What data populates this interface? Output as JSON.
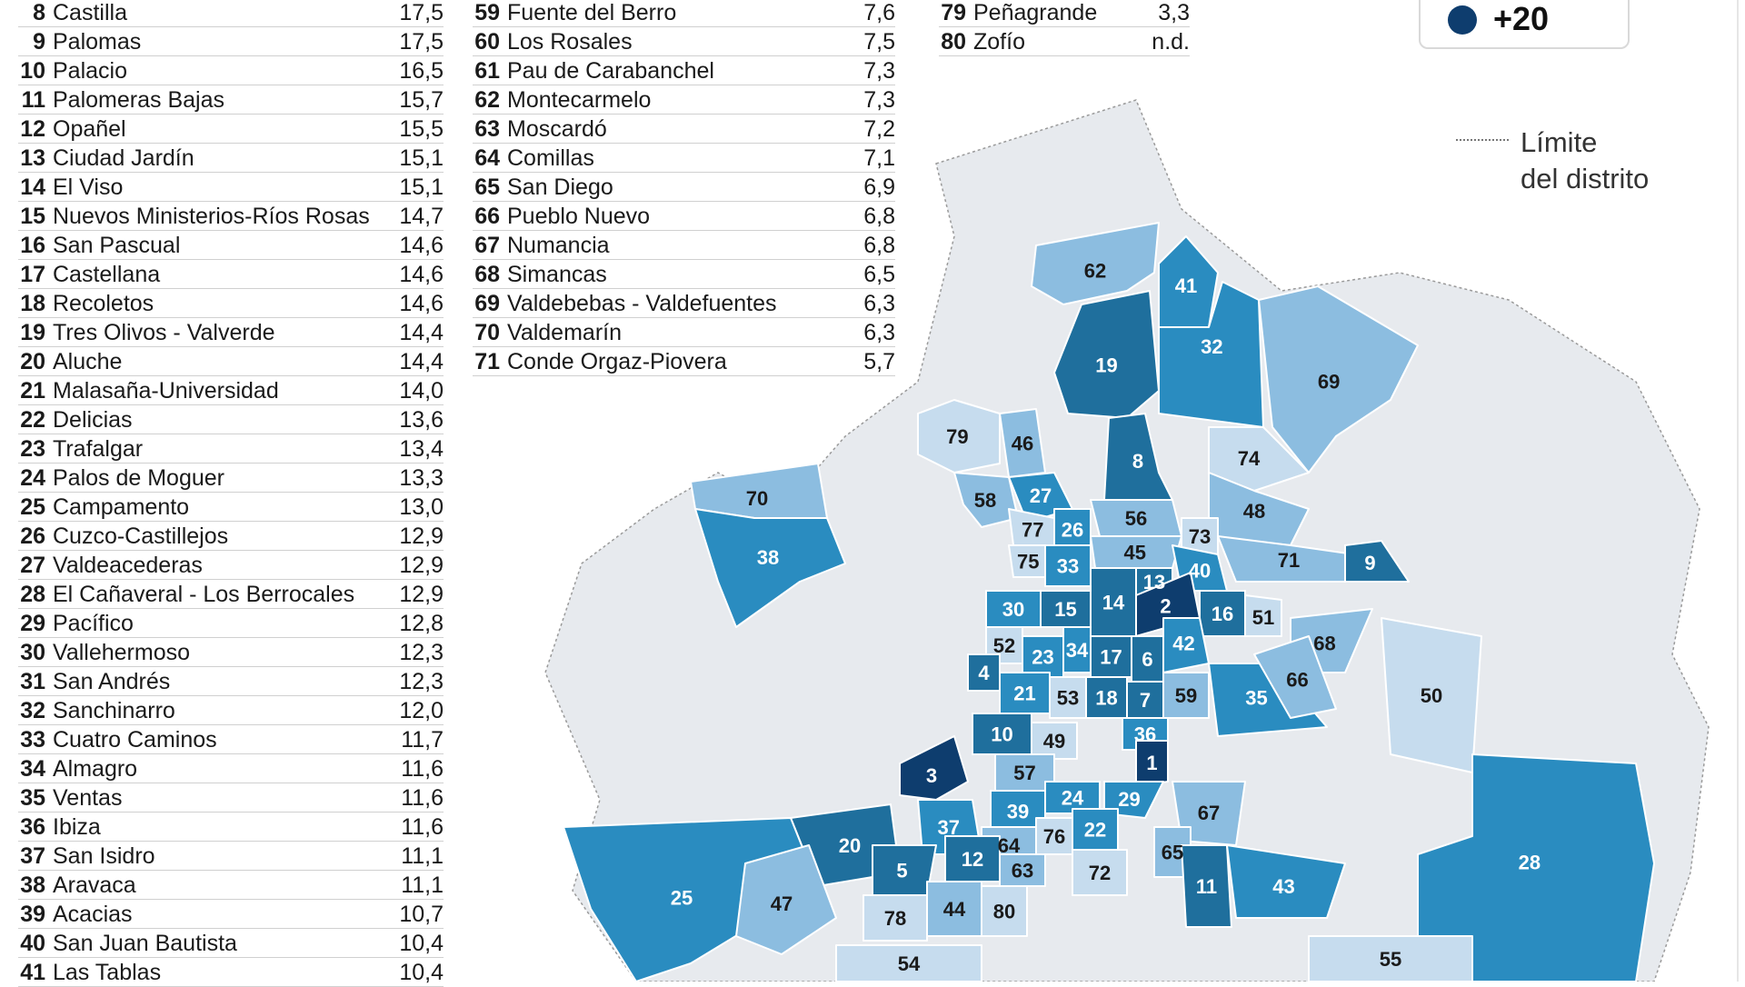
{
  "legend": {
    "top_bin_label": "+20",
    "top_bin_color": "#0e3d6e"
  },
  "district_legend": {
    "line1": "Límite",
    "line2": "del distrito"
  },
  "table_col1": [
    {
      "rank": "8",
      "name": "Castilla",
      "value": "17,5"
    },
    {
      "rank": "9",
      "name": "Palomas",
      "value": "17,5"
    },
    {
      "rank": "10",
      "name": "Palacio",
      "value": "16,5"
    },
    {
      "rank": "11",
      "name": "Palomeras Bajas",
      "value": "15,7"
    },
    {
      "rank": "12",
      "name": "Opañel",
      "value": "15,5"
    },
    {
      "rank": "13",
      "name": "Ciudad Jardín",
      "value": "15,1"
    },
    {
      "rank": "14",
      "name": "El Viso",
      "value": "15,1"
    },
    {
      "rank": "15",
      "name": "Nuevos Ministerios-Ríos Rosas",
      "value": "14,7"
    },
    {
      "rank": "16",
      "name": "San Pascual",
      "value": "14,6"
    },
    {
      "rank": "17",
      "name": "Castellana",
      "value": "14,6"
    },
    {
      "rank": "18",
      "name": "Recoletos",
      "value": "14,6"
    },
    {
      "rank": "19",
      "name": "Tres Olivos - Valverde",
      "value": "14,4"
    },
    {
      "rank": "20",
      "name": "Aluche",
      "value": "14,4"
    },
    {
      "rank": "21",
      "name": "Malasaña-Universidad",
      "value": "14,0"
    },
    {
      "rank": "22",
      "name": "Delicias",
      "value": "13,6"
    },
    {
      "rank": "23",
      "name": "Trafalgar",
      "value": "13,4"
    },
    {
      "rank": "24",
      "name": "Palos de Moguer",
      "value": "13,3"
    },
    {
      "rank": "25",
      "name": "Campamento",
      "value": "13,0"
    },
    {
      "rank": "26",
      "name": "Cuzco-Castillejos",
      "value": "12,9"
    },
    {
      "rank": "27",
      "name": "Valdeacederas",
      "value": "12,9"
    },
    {
      "rank": "28",
      "name": "El Cañaveral - Los Berrocales",
      "value": "12,9"
    },
    {
      "rank": "29",
      "name": "Pacífico",
      "value": "12,8"
    },
    {
      "rank": "30",
      "name": "Vallehermoso",
      "value": "12,3"
    },
    {
      "rank": "31",
      "name": "San Andrés",
      "value": "12,3"
    },
    {
      "rank": "32",
      "name": "Sanchinarro",
      "value": "12,0"
    },
    {
      "rank": "33",
      "name": "Cuatro Caminos",
      "value": "11,7"
    },
    {
      "rank": "34",
      "name": "Almagro",
      "value": "11,6"
    },
    {
      "rank": "35",
      "name": "Ventas",
      "value": "11,6"
    },
    {
      "rank": "36",
      "name": "Ibiza",
      "value": "11,6"
    },
    {
      "rank": "37",
      "name": "San Isidro",
      "value": "11,1"
    },
    {
      "rank": "38",
      "name": "Aravaca",
      "value": "11,1"
    },
    {
      "rank": "39",
      "name": "Acacias",
      "value": "10,7"
    },
    {
      "rank": "40",
      "name": "San Juan Bautista",
      "value": "10,4"
    },
    {
      "rank": "41",
      "name": "Las Tablas",
      "value": "10,4"
    }
  ],
  "table_col2": [
    {
      "rank": "59",
      "name": "Fuente del Berro",
      "value": "7,6"
    },
    {
      "rank": "60",
      "name": "Los Rosales",
      "value": "7,5"
    },
    {
      "rank": "61",
      "name": "Pau de Carabanchel",
      "value": "7,3"
    },
    {
      "rank": "62",
      "name": "Montecarmelo",
      "value": "7,3"
    },
    {
      "rank": "63",
      "name": "Moscardó",
      "value": "7,2"
    },
    {
      "rank": "64",
      "name": "Comillas",
      "value": "7,1"
    },
    {
      "rank": "65",
      "name": "San Diego",
      "value": "6,9"
    },
    {
      "rank": "66",
      "name": "Pueblo Nuevo",
      "value": "6,8"
    },
    {
      "rank": "67",
      "name": "Numancia",
      "value": "6,8"
    },
    {
      "rank": "68",
      "name": "Simancas",
      "value": "6,5"
    },
    {
      "rank": "69",
      "name": "Valdebebas - Valdefuentes",
      "value": "6,3"
    },
    {
      "rank": "70",
      "name": "Valdemarín",
      "value": "6,3"
    },
    {
      "rank": "71",
      "name": "Conde Orgaz-Piovera",
      "value": "5,7"
    }
  ],
  "table_col3": [
    {
      "rank": "79",
      "name": "Peñagrande",
      "value": "3,3"
    },
    {
      "rank": "80",
      "name": "Zofío",
      "value": "n.d."
    }
  ],
  "map_labels": [
    {
      "id": "1",
      "bin": "darkest"
    },
    {
      "id": "2",
      "bin": "darkest"
    },
    {
      "id": "3",
      "bin": "darkest"
    },
    {
      "id": "4",
      "bin": "dark"
    },
    {
      "id": "5",
      "bin": "dark"
    },
    {
      "id": "6",
      "bin": "dark"
    },
    {
      "id": "7",
      "bin": "dark"
    },
    {
      "id": "8",
      "bin": "dark"
    },
    {
      "id": "9",
      "bin": "dark"
    },
    {
      "id": "10",
      "bin": "dark"
    },
    {
      "id": "11",
      "bin": "dark"
    },
    {
      "id": "12",
      "bin": "dark"
    },
    {
      "id": "13",
      "bin": "dark"
    },
    {
      "id": "14",
      "bin": "dark"
    },
    {
      "id": "15",
      "bin": "dark"
    },
    {
      "id": "16",
      "bin": "dark"
    },
    {
      "id": "17",
      "bin": "dark"
    },
    {
      "id": "18",
      "bin": "dark"
    },
    {
      "id": "19",
      "bin": "dark"
    },
    {
      "id": "20",
      "bin": "dark"
    },
    {
      "id": "21",
      "bin": "mid"
    },
    {
      "id": "22",
      "bin": "mid"
    },
    {
      "id": "23",
      "bin": "mid"
    },
    {
      "id": "24",
      "bin": "mid"
    },
    {
      "id": "25",
      "bin": "mid"
    },
    {
      "id": "26",
      "bin": "mid"
    },
    {
      "id": "27",
      "bin": "mid"
    },
    {
      "id": "28",
      "bin": "mid"
    },
    {
      "id": "29",
      "bin": "mid"
    },
    {
      "id": "30",
      "bin": "mid"
    },
    {
      "id": "32",
      "bin": "mid"
    },
    {
      "id": "33",
      "bin": "mid"
    },
    {
      "id": "34",
      "bin": "mid"
    },
    {
      "id": "35",
      "bin": "mid"
    },
    {
      "id": "36",
      "bin": "mid"
    },
    {
      "id": "37",
      "bin": "mid"
    },
    {
      "id": "38",
      "bin": "mid"
    },
    {
      "id": "39",
      "bin": "mid"
    },
    {
      "id": "40",
      "bin": "mid"
    },
    {
      "id": "41",
      "bin": "mid"
    },
    {
      "id": "42",
      "bin": "mid"
    },
    {
      "id": "43",
      "bin": "mid"
    },
    {
      "id": "44",
      "bin": "light"
    },
    {
      "id": "45",
      "bin": "light"
    },
    {
      "id": "46",
      "bin": "light"
    },
    {
      "id": "47",
      "bin": "light"
    },
    {
      "id": "48",
      "bin": "light"
    },
    {
      "id": "49",
      "bin": "pale"
    },
    {
      "id": "50",
      "bin": "pale"
    },
    {
      "id": "51",
      "bin": "pale"
    },
    {
      "id": "52",
      "bin": "pale"
    },
    {
      "id": "53",
      "bin": "pale"
    },
    {
      "id": "54",
      "bin": "pale"
    },
    {
      "id": "55",
      "bin": "pale"
    },
    {
      "id": "56",
      "bin": "light"
    },
    {
      "id": "57",
      "bin": "light"
    },
    {
      "id": "58",
      "bin": "light"
    },
    {
      "id": "59",
      "bin": "light"
    },
    {
      "id": "62",
      "bin": "light"
    },
    {
      "id": "63",
      "bin": "light"
    },
    {
      "id": "64",
      "bin": "light"
    },
    {
      "id": "65",
      "bin": "light"
    },
    {
      "id": "66",
      "bin": "light"
    },
    {
      "id": "67",
      "bin": "light"
    },
    {
      "id": "68",
      "bin": "light"
    },
    {
      "id": "69",
      "bin": "light"
    },
    {
      "id": "70",
      "bin": "light"
    },
    {
      "id": "71",
      "bin": "light"
    },
    {
      "id": "72",
      "bin": "pale"
    },
    {
      "id": "73",
      "bin": "pale"
    },
    {
      "id": "74",
      "bin": "pale"
    },
    {
      "id": "75",
      "bin": "pale"
    },
    {
      "id": "76",
      "bin": "pale"
    },
    {
      "id": "77",
      "bin": "pale"
    },
    {
      "id": "78",
      "bin": "pale"
    },
    {
      "id": "79",
      "bin": "pale"
    },
    {
      "id": "80",
      "bin": "pale"
    }
  ],
  "bin_colors": {
    "darkest": "#0e3d6e",
    "dark": "#1f6f9d",
    "mid": "#2a8cc0",
    "light": "#8cbde0",
    "pale": "#c6dcee",
    "base": "#e7eaee"
  }
}
